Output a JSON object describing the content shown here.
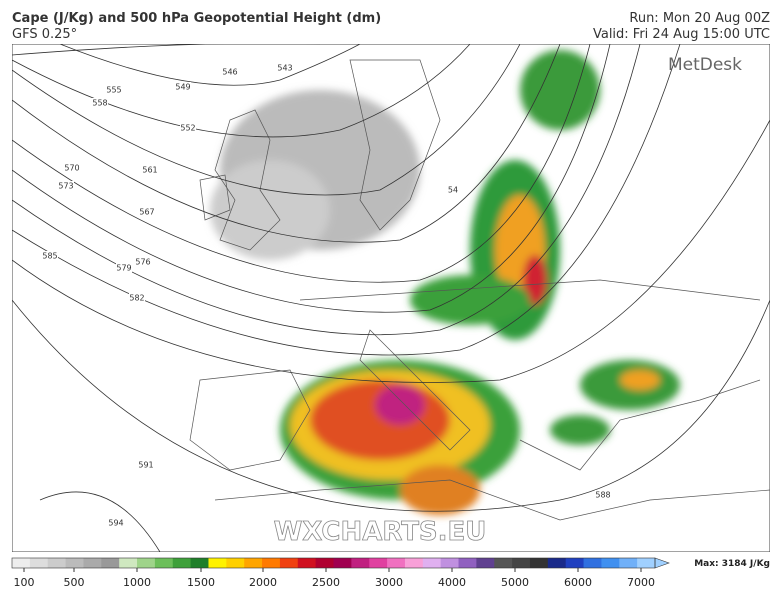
{
  "header": {
    "title": "Cape (J/Kg) and 500 hPa Geopotential Height (dm)",
    "model": "GFS 0.25°",
    "run": "Run: Mon 20 Aug 00Z",
    "valid": "Valid: Fri 24 Aug 15:00 UTC"
  },
  "brand": "MetDesk",
  "watermark": "WXCHARTS.EU",
  "contour_labels": [
    "543",
    "546",
    "549",
    "552",
    "555",
    "558",
    "561",
    "567",
    "570",
    "573",
    "576",
    "579",
    "582",
    "585",
    "591",
    "594",
    "588",
    "54"
  ],
  "colorbar": {
    "ticks": [
      "100",
      "500",
      "1000",
      "1500",
      "2000",
      "2500",
      "3000",
      "4000",
      "5000",
      "6000",
      "7000"
    ],
    "max_label": "Max: 3184 J/Kg"
  }
}
